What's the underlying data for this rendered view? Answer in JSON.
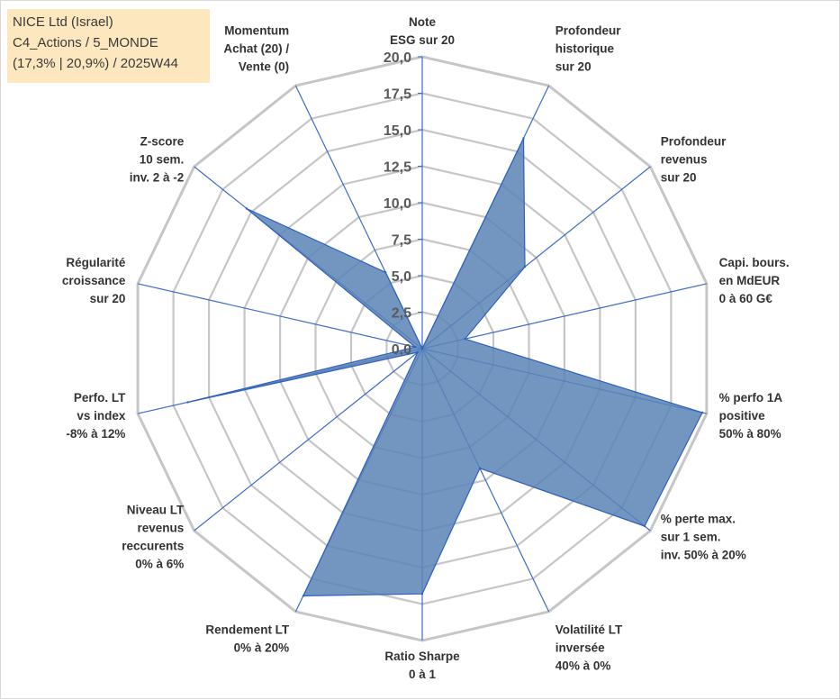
{
  "title_box": {
    "line1": "NICE Ltd (Israel)",
    "line2": "C4_Actions / 5_MONDE",
    "line3": "(17,3% | 20,9%) / 2025W44"
  },
  "chart_data": {
    "type": "radar",
    "rmax": 20,
    "ticks": [
      "0,0",
      "2,5",
      "5,0",
      "7,5",
      "10,0",
      "12,5",
      "15,0",
      "17,5",
      "20,0"
    ],
    "axes": [
      {
        "lines": [
          "Note",
          "ESG sur 20"
        ],
        "value": 0
      },
      {
        "lines": [
          "Profondeur",
          "historique",
          "sur 20"
        ],
        "value": 16
      },
      {
        "lines": [
          "Profondeur",
          "revenus",
          "sur 20"
        ],
        "value": 9
      },
      {
        "lines": [
          "Capi. bours.",
          "en MdEUR",
          "0 à 60 G€"
        ],
        "value": 3
      },
      {
        "lines": [
          "% perfo 1A",
          "positive",
          "50% à 80%"
        ],
        "value": 19.7
      },
      {
        "lines": [
          "% perte max.",
          "sur 1 sem.",
          "inv. 50% à 20%"
        ],
        "value": 19.5
      },
      {
        "lines": [
          "Volatilité LT",
          "inversée",
          "40% à 0%"
        ],
        "value": 9.1
      },
      {
        "lines": [
          "Ratio Sharpe",
          "0 à 1"
        ],
        "value": 16.8
      },
      {
        "lines": [
          "Rendement LT",
          "0% à 20%"
        ],
        "value": 18.8
      },
      {
        "lines": [
          "Niveau LT",
          "revenus",
          "reccurents",
          "0% à 6%"
        ],
        "value": 0.4
      },
      {
        "lines": [
          "Perfo. LT",
          "vs index",
          "-8% à 12%"
        ],
        "value": 16.5
      },
      {
        "lines": [
          "Régularité",
          "croissance",
          "sur 20"
        ],
        "value": 0.5
      },
      {
        "lines": [
          "Z-score",
          "10 sem.",
          "inv. 2 à -2"
        ],
        "value": 15.4
      },
      {
        "lines": [
          "Momentum",
          "Achat (20) /",
          "Vente (0)"
        ],
        "value": 5.8
      }
    ]
  },
  "colors": {
    "fill": "#5b84b6",
    "stroke": "#2f5fbf",
    "grid": "#c6c6c6",
    "spoke": "#3b6cc8"
  }
}
